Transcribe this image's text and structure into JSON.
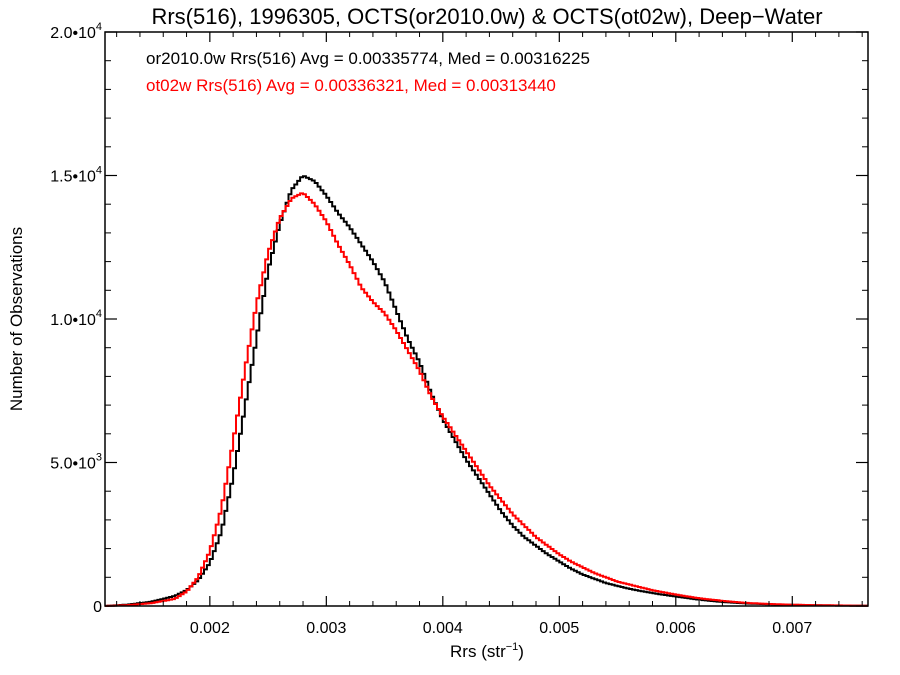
{
  "chart_data": {
    "type": "line",
    "title": "Rrs(516), 1996305, OCTS(or2010.0w) & OCTS(ot02w), Deep−Water",
    "xlabel": "Rrs (str",
    "xlabel_sup": "−1",
    "xlabel_suffix": ")",
    "ylabel": "Number of Observations",
    "xlim": [
      0.0011,
      0.00765
    ],
    "ylim": [
      0,
      20000
    ],
    "grid": false,
    "legend_placement": "top-left",
    "x_ticks": [
      {
        "value": 0.002,
        "label": "0.002"
      },
      {
        "value": 0.003,
        "label": "0.003"
      },
      {
        "value": 0.004,
        "label": "0.004"
      },
      {
        "value": 0.005,
        "label": "0.005"
      },
      {
        "value": 0.006,
        "label": "0.006"
      },
      {
        "value": 0.007,
        "label": "0.007"
      }
    ],
    "y_ticks": [
      {
        "value": 0,
        "mant": "0",
        "exp": ""
      },
      {
        "value": 5000,
        "mant": "5.0•10",
        "exp": "3"
      },
      {
        "value": 10000,
        "mant": "1.0•10",
        "exp": "4"
      },
      {
        "value": 15000,
        "mant": "1.5•10",
        "exp": "4"
      },
      {
        "value": 20000,
        "mant": "2.0•10",
        "exp": "4"
      }
    ],
    "series": [
      {
        "name": "or2010.0w",
        "legend": "or2010.0w Rrs(516) Avg = 0.00335774, Med = 0.00316225",
        "color": "#000000",
        "points": [
          [
            0.0011,
            0
          ],
          [
            0.0013,
            50
          ],
          [
            0.0015,
            150
          ],
          [
            0.0017,
            350
          ],
          [
            0.0018,
            550
          ],
          [
            0.0019,
            900
          ],
          [
            0.002,
            1500
          ],
          [
            0.0021,
            2600
          ],
          [
            0.0022,
            4500
          ],
          [
            0.0023,
            6900
          ],
          [
            0.0024,
            9300
          ],
          [
            0.0025,
            11700
          ],
          [
            0.0026,
            13300
          ],
          [
            0.0027,
            14500
          ],
          [
            0.0028,
            15000
          ],
          [
            0.0029,
            14800
          ],
          [
            0.003,
            14300
          ],
          [
            0.0031,
            13700
          ],
          [
            0.0032,
            13200
          ],
          [
            0.0033,
            12600
          ],
          [
            0.0034,
            12000
          ],
          [
            0.0035,
            11300
          ],
          [
            0.0036,
            10300
          ],
          [
            0.0037,
            9300
          ],
          [
            0.0038,
            8500
          ],
          [
            0.0039,
            7400
          ],
          [
            0.004,
            6500
          ],
          [
            0.0041,
            5800
          ],
          [
            0.0042,
            5100
          ],
          [
            0.0043,
            4500
          ],
          [
            0.0044,
            3900
          ],
          [
            0.0045,
            3300
          ],
          [
            0.0046,
            2800
          ],
          [
            0.0047,
            2400
          ],
          [
            0.0048,
            2100
          ],
          [
            0.0049,
            1800
          ],
          [
            0.005,
            1550
          ],
          [
            0.0051,
            1300
          ],
          [
            0.0052,
            1100
          ],
          [
            0.0053,
            950
          ],
          [
            0.0054,
            800
          ],
          [
            0.0055,
            700
          ],
          [
            0.0056,
            600
          ],
          [
            0.0058,
            450
          ],
          [
            0.006,
            330
          ],
          [
            0.0062,
            220
          ],
          [
            0.0064,
            140
          ],
          [
            0.0066,
            90
          ],
          [
            0.0068,
            60
          ],
          [
            0.007,
            40
          ],
          [
            0.0072,
            25
          ],
          [
            0.0074,
            15
          ],
          [
            0.0076,
            10
          ]
        ]
      },
      {
        "name": "ot02w",
        "legend": "ot02w Rrs(516) Avg = 0.00336321, Med = 0.00313440",
        "color": "#ff0000",
        "points": [
          [
            0.0011,
            0
          ],
          [
            0.0013,
            30
          ],
          [
            0.0015,
            100
          ],
          [
            0.0017,
            250
          ],
          [
            0.0018,
            500
          ],
          [
            0.0019,
            1000
          ],
          [
            0.002,
            1900
          ],
          [
            0.0021,
            3400
          ],
          [
            0.0022,
            5700
          ],
          [
            0.0023,
            8200
          ],
          [
            0.0024,
            10500
          ],
          [
            0.0025,
            12300
          ],
          [
            0.0026,
            13500
          ],
          [
            0.0027,
            14200
          ],
          [
            0.0028,
            14400
          ],
          [
            0.0029,
            14000
          ],
          [
            0.003,
            13400
          ],
          [
            0.0031,
            12600
          ],
          [
            0.0032,
            11900
          ],
          [
            0.0033,
            11100
          ],
          [
            0.0034,
            10600
          ],
          [
            0.0035,
            10200
          ],
          [
            0.0036,
            9600
          ],
          [
            0.0037,
            8900
          ],
          [
            0.0038,
            8200
          ],
          [
            0.0039,
            7300
          ],
          [
            0.004,
            6600
          ],
          [
            0.0041,
            6000
          ],
          [
            0.0042,
            5400
          ],
          [
            0.0043,
            4800
          ],
          [
            0.0044,
            4200
          ],
          [
            0.0045,
            3700
          ],
          [
            0.0046,
            3200
          ],
          [
            0.0047,
            2800
          ],
          [
            0.0048,
            2400
          ],
          [
            0.0049,
            2100
          ],
          [
            0.005,
            1800
          ],
          [
            0.0051,
            1550
          ],
          [
            0.0052,
            1350
          ],
          [
            0.0053,
            1150
          ],
          [
            0.0054,
            1000
          ],
          [
            0.0055,
            850
          ],
          [
            0.0056,
            750
          ],
          [
            0.0058,
            550
          ],
          [
            0.006,
            400
          ],
          [
            0.0062,
            270
          ],
          [
            0.0064,
            180
          ],
          [
            0.0066,
            110
          ],
          [
            0.0068,
            70
          ],
          [
            0.007,
            45
          ],
          [
            0.0072,
            30
          ],
          [
            0.0074,
            20
          ],
          [
            0.0076,
            12
          ]
        ]
      }
    ]
  }
}
